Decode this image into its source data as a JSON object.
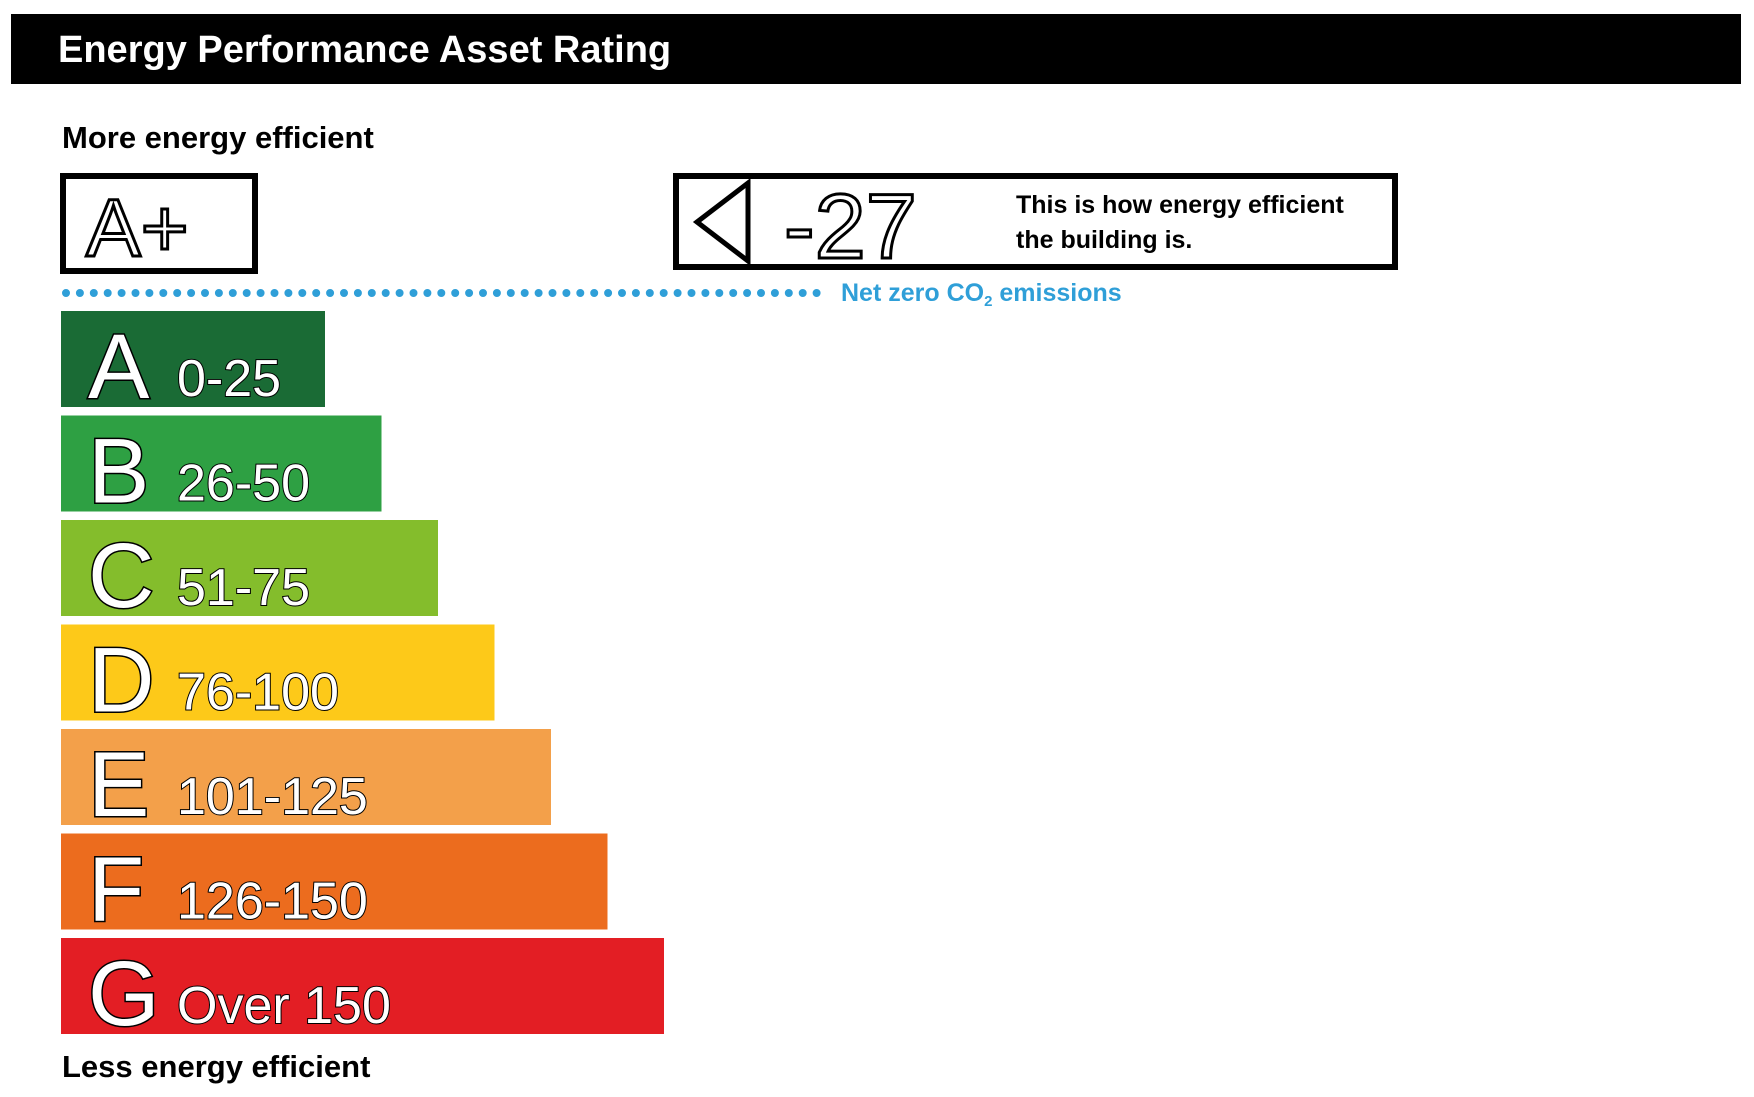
{
  "header": {
    "title": "Energy Performance Asset Rating"
  },
  "labels": {
    "more_efficient": "More energy efficient",
    "less_efficient": "Less energy efficient",
    "net_zero_prefix": "Net zero CO",
    "net_zero_subscript": "2",
    "net_zero_suffix": " emissions"
  },
  "aplus": {
    "label": "A+"
  },
  "indicator": {
    "value": "-27",
    "text_line1": "This is how energy efficient",
    "text_line2": "the building is."
  },
  "colors": {
    "header_bg": "#000000",
    "net_zero": "#2f9fd8",
    "outline_text": "#ffffff",
    "bar_text": "#ffffff"
  },
  "chart_data": {
    "type": "bar",
    "title": "Energy Performance Asset Rating",
    "categories": [
      "A",
      "B",
      "C",
      "D",
      "E",
      "F",
      "G"
    ],
    "ranges": [
      "0-25",
      "26-50",
      "51-75",
      "76-100",
      "101-125",
      "126-150",
      "Over 150"
    ],
    "colors": [
      "#1a6b35",
      "#2ea043",
      "#84bd2c",
      "#fdc919",
      "#f3a04a",
      "#ec6c1e",
      "#e31e24"
    ],
    "current_rating": -27,
    "current_band": "A+"
  }
}
